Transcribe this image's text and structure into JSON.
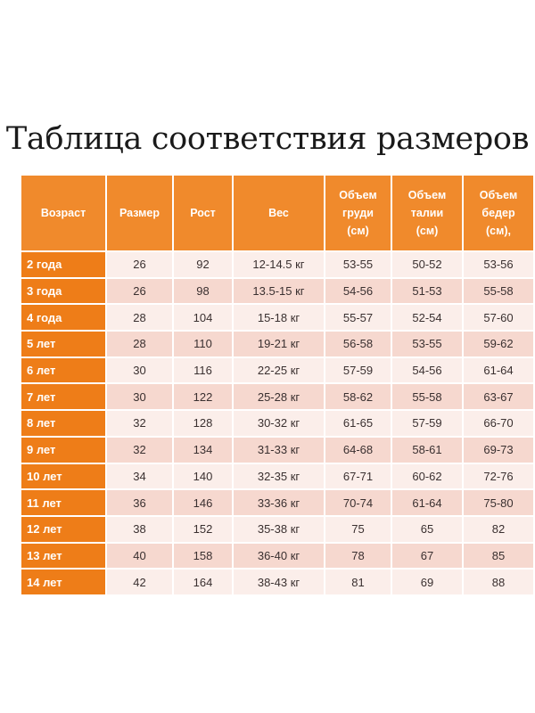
{
  "title": "Таблица соответствия размеров",
  "colors": {
    "header": "#f08a2c",
    "age_column": "#ee7d18",
    "row_light": "#fbeeea",
    "row_dark": "#f6d8cf"
  },
  "headers": [
    "Возраст",
    "Размер",
    "Рост",
    "Вес",
    "Объем груди (см)",
    "Объем талии (см)",
    "Объем бедер (см),"
  ],
  "rows": [
    [
      "2 года",
      "26",
      "92",
      "12-14.5 кг",
      "53-55",
      "50-52",
      "53-56"
    ],
    [
      "3 года",
      "26",
      "98",
      "13.5-15 кг",
      "54-56",
      "51-53",
      "55-58"
    ],
    [
      "4 года",
      "28",
      "104",
      "15-18 кг",
      "55-57",
      "52-54",
      "57-60"
    ],
    [
      "5 лет",
      "28",
      "110",
      "19-21 кг",
      "56-58",
      "53-55",
      "59-62"
    ],
    [
      "6 лет",
      "30",
      "116",
      "22-25 кг",
      "57-59",
      "54-56",
      "61-64"
    ],
    [
      "7 лет",
      "30",
      "122",
      "25-28 кг",
      "58-62",
      "55-58",
      "63-67"
    ],
    [
      "8 лет",
      "32",
      "128",
      "30-32 кг",
      "61-65",
      "57-59",
      "66-70"
    ],
    [
      "9 лет",
      "32",
      "134",
      "31-33 кг",
      "64-68",
      "58-61",
      "69-73"
    ],
    [
      "10 лет",
      "34",
      "140",
      "32-35 кг",
      "67-71",
      "60-62",
      "72-76"
    ],
    [
      "11 лет",
      "36",
      "146",
      "33-36 кг",
      "70-74",
      "61-64",
      "75-80"
    ],
    [
      "12 лет",
      "38",
      "152",
      "35-38 кг",
      "75",
      "65",
      "82"
    ],
    [
      "13 лет",
      "40",
      "158",
      "36-40 кг",
      "78",
      "67",
      "85"
    ],
    [
      "14 лет",
      "42",
      "164",
      "38-43 кг",
      "81",
      "69",
      "88"
    ]
  ]
}
